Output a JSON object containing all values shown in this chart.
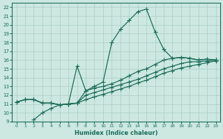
{
  "xlabel": "Humidex (Indice chaleur)",
  "bg_color": "#cce8e0",
  "line_color": "#1a6b5a",
  "grid_color": "#a8ccc4",
  "xlim": [
    -0.5,
    23.5
  ],
  "ylim": [
    9,
    22.5
  ],
  "xticks": [
    0,
    1,
    2,
    3,
    4,
    5,
    6,
    7,
    8,
    9,
    10,
    11,
    12,
    13,
    14,
    15,
    16,
    17,
    18,
    19,
    20,
    21,
    22,
    23
  ],
  "yticks": [
    9,
    10,
    11,
    12,
    13,
    14,
    15,
    16,
    17,
    18,
    19,
    20,
    21,
    22
  ],
  "line_main_x": [
    0,
    1,
    2,
    3,
    4,
    5,
    6,
    7,
    8,
    9,
    10,
    11,
    12,
    13,
    14,
    15,
    16,
    17,
    18,
    19,
    20,
    21,
    22,
    23
  ],
  "line_main_y": [
    11.2,
    11.5,
    11.5,
    11.1,
    11.1,
    10.9,
    11.0,
    11.1,
    12.5,
    13.0,
    13.5,
    18.0,
    19.5,
    20.5,
    21.5,
    21.8,
    19.2,
    17.2,
    16.2,
    16.3,
    16.2,
    16.0,
    16.1,
    16.0
  ],
  "line_spike_x": [
    0,
    1,
    2,
    3,
    4,
    5,
    6,
    7,
    8,
    9,
    10,
    11,
    12,
    13,
    14,
    15,
    16,
    17,
    18,
    19,
    20,
    21,
    22,
    23
  ],
  "line_spike_y": [
    11.2,
    11.5,
    11.5,
    11.1,
    11.1,
    10.9,
    11.0,
    15.3,
    12.5,
    12.8,
    13.0,
    13.3,
    13.7,
    14.2,
    14.7,
    15.0,
    15.5,
    16.0,
    16.2,
    16.3,
    16.2,
    16.0,
    16.1,
    16.0
  ],
  "line_low1_x": [
    0,
    1,
    2,
    3,
    4,
    5,
    6,
    7,
    8,
    9,
    10,
    11,
    12,
    13,
    14,
    15,
    16,
    17,
    18,
    19,
    20,
    21,
    22,
    23
  ],
  "line_low1_y": [
    11.2,
    11.5,
    11.5,
    11.1,
    11.1,
    10.9,
    11.0,
    11.1,
    12.0,
    12.3,
    12.6,
    12.9,
    13.2,
    13.5,
    13.8,
    14.2,
    14.6,
    15.0,
    15.3,
    15.6,
    15.8,
    15.8,
    15.9,
    16.0
  ],
  "line_low2_x": [
    2,
    3,
    4,
    5,
    6,
    7,
    8,
    9,
    10,
    11,
    12,
    13,
    14,
    15,
    16,
    17,
    18,
    19,
    20,
    21,
    22,
    23
  ],
  "line_low2_y": [
    9.2,
    10.0,
    10.5,
    10.9,
    11.0,
    11.1,
    11.5,
    11.8,
    12.1,
    12.4,
    12.7,
    13.0,
    13.4,
    13.7,
    14.1,
    14.5,
    14.8,
    15.1,
    15.3,
    15.5,
    15.7,
    15.9
  ]
}
